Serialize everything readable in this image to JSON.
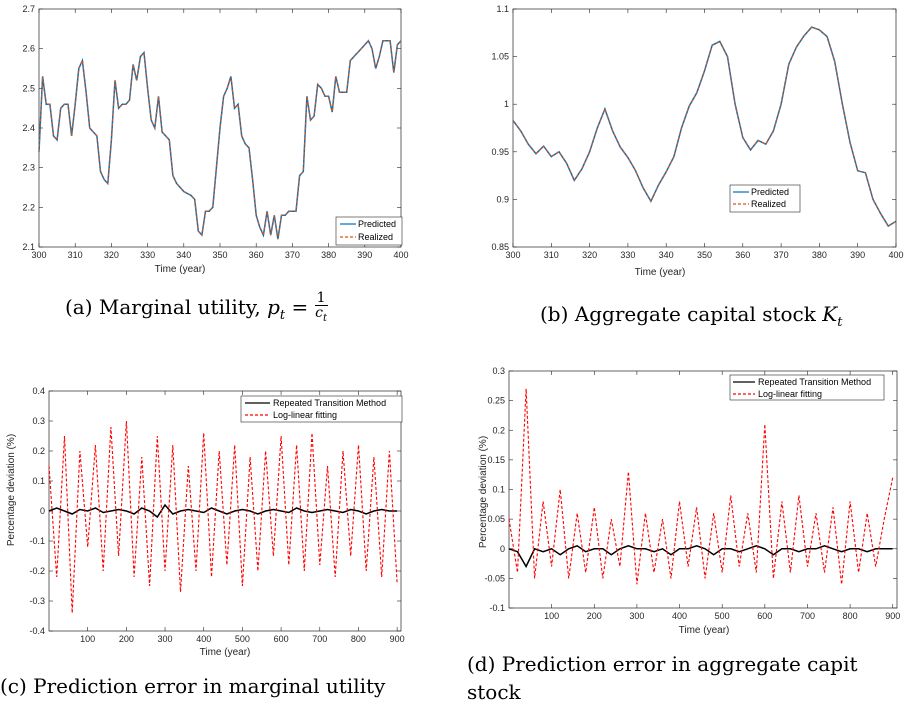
{
  "captions": {
    "a": "(a) Marginal utility, ",
    "a_math_p": "p",
    "a_math_sub": "t",
    "a_math_num": "1",
    "a_math_den": "c",
    "a_math_den_sub": "t",
    "b": "(b) Aggregate capital stock ",
    "b_math": "K",
    "b_math_sub": "t",
    "c": "(c) Prediction error in marginal utility",
    "d1": "(d) Prediction error in aggregate capit",
    "d2": "stock"
  },
  "chart_data": [
    {
      "id": "a",
      "type": "line",
      "xlabel": "Time (year)",
      "ylabel": "",
      "xlim": [
        300,
        400
      ],
      "ylim": [
        2.1,
        2.7
      ],
      "xticks": [
        300,
        310,
        320,
        330,
        340,
        350,
        360,
        370,
        380,
        390,
        400
      ],
      "yticks": [
        2.1,
        2.2,
        2.3,
        2.4,
        2.5,
        2.6,
        2.7
      ],
      "legend_position": "bottom-right",
      "x": [
        300,
        301,
        302,
        303,
        304,
        305,
        306,
        307,
        308,
        309,
        310,
        311,
        312,
        313,
        314,
        315,
        316,
        317,
        318,
        319,
        320,
        321,
        322,
        323,
        324,
        325,
        326,
        327,
        328,
        329,
        330,
        331,
        332,
        333,
        334,
        335,
        336,
        337,
        338,
        339,
        340,
        341,
        342,
        343,
        344,
        345,
        346,
        347,
        348,
        349,
        350,
        351,
        352,
        353,
        354,
        355,
        356,
        357,
        358,
        359,
        360,
        361,
        362,
        363,
        364,
        365,
        366,
        367,
        368,
        369,
        370,
        371,
        372,
        373,
        374,
        375,
        376,
        377,
        378,
        379,
        380,
        381,
        382,
        383,
        384,
        385,
        386,
        387,
        388,
        389,
        390,
        391,
        392,
        393,
        394,
        395,
        396,
        397,
        398,
        399,
        400
      ],
      "series": [
        {
          "name": "Predicted",
          "color": "#0072BD",
          "dash": "solid",
          "values": [
            2.34,
            2.53,
            2.46,
            2.46,
            2.38,
            2.37,
            2.45,
            2.46,
            2.46,
            2.38,
            2.46,
            2.55,
            2.57,
            2.49,
            2.4,
            2.39,
            2.38,
            2.29,
            2.27,
            2.26,
            2.37,
            2.52,
            2.45,
            2.46,
            2.46,
            2.47,
            2.56,
            2.52,
            2.58,
            2.59,
            2.5,
            2.42,
            2.4,
            2.48,
            2.39,
            2.38,
            2.37,
            2.28,
            2.26,
            2.25,
            2.24,
            2.235,
            2.23,
            2.22,
            2.14,
            2.13,
            2.19,
            2.19,
            2.2,
            2.3,
            2.4,
            2.48,
            2.5,
            2.53,
            2.45,
            2.46,
            2.38,
            2.36,
            2.35,
            2.27,
            2.18,
            2.15,
            2.13,
            2.19,
            2.13,
            2.18,
            2.12,
            2.18,
            2.18,
            2.19,
            2.19,
            2.19,
            2.28,
            2.29,
            2.48,
            2.42,
            2.43,
            2.51,
            2.5,
            2.48,
            2.48,
            2.44,
            2.53,
            2.49,
            2.49,
            2.49,
            2.57,
            2.58,
            2.59,
            2.6,
            2.61,
            2.62,
            2.6,
            2.55,
            2.58,
            2.62,
            2.62,
            2.62,
            2.54,
            2.61,
            2.62
          ]
        },
        {
          "name": "Realized",
          "color": "#D95319",
          "dash": "dashed",
          "values": [
            2.34,
            2.53,
            2.46,
            2.46,
            2.38,
            2.37,
            2.45,
            2.46,
            2.46,
            2.38,
            2.46,
            2.55,
            2.57,
            2.49,
            2.4,
            2.39,
            2.38,
            2.29,
            2.27,
            2.26,
            2.37,
            2.52,
            2.45,
            2.46,
            2.46,
            2.47,
            2.56,
            2.52,
            2.58,
            2.59,
            2.5,
            2.42,
            2.4,
            2.48,
            2.39,
            2.38,
            2.37,
            2.28,
            2.26,
            2.25,
            2.24,
            2.235,
            2.23,
            2.22,
            2.14,
            2.13,
            2.19,
            2.19,
            2.2,
            2.3,
            2.4,
            2.48,
            2.5,
            2.53,
            2.45,
            2.46,
            2.38,
            2.36,
            2.35,
            2.27,
            2.18,
            2.15,
            2.13,
            2.19,
            2.13,
            2.18,
            2.12,
            2.18,
            2.18,
            2.19,
            2.19,
            2.19,
            2.28,
            2.29,
            2.48,
            2.42,
            2.43,
            2.51,
            2.5,
            2.48,
            2.48,
            2.44,
            2.53,
            2.49,
            2.49,
            2.49,
            2.57,
            2.58,
            2.59,
            2.6,
            2.61,
            2.62,
            2.6,
            2.55,
            2.58,
            2.62,
            2.62,
            2.62,
            2.54,
            2.61,
            2.62
          ]
        }
      ]
    },
    {
      "id": "b",
      "type": "line",
      "xlabel": "Time (year)",
      "ylabel": "",
      "xlim": [
        300,
        400
      ],
      "ylim": [
        0.85,
        1.1
      ],
      "xticks": [
        300,
        310,
        320,
        330,
        340,
        350,
        360,
        370,
        380,
        390,
        400
      ],
      "yticks": [
        0.85,
        0.9,
        0.95,
        1,
        1.05,
        1.1
      ],
      "legend_position": "bottom-right",
      "x": [
        300,
        302,
        304,
        306,
        308,
        310,
        312,
        314,
        316,
        318,
        320,
        322,
        324,
        326,
        328,
        330,
        332,
        334,
        336,
        338,
        340,
        342,
        344,
        346,
        348,
        350,
        352,
        354,
        356,
        358,
        360,
        362,
        364,
        366,
        368,
        370,
        372,
        374,
        376,
        378,
        380,
        382,
        384,
        386,
        388,
        390,
        392,
        394,
        396,
        398,
        400
      ],
      "series": [
        {
          "name": "Predicted",
          "color": "#0072BD",
          "dash": "solid",
          "values": [
            0.983,
            0.972,
            0.958,
            0.948,
            0.956,
            0.945,
            0.95,
            0.938,
            0.92,
            0.932,
            0.95,
            0.975,
            0.995,
            0.972,
            0.955,
            0.944,
            0.93,
            0.912,
            0.898,
            0.915,
            0.929,
            0.945,
            0.975,
            0.998,
            1.012,
            1.035,
            1.062,
            1.066,
            1.05,
            1.0,
            0.965,
            0.952,
            0.962,
            0.958,
            0.972,
            1.0,
            1.042,
            1.06,
            1.072,
            1.081,
            1.078,
            1.071,
            1.045,
            1.0,
            0.96,
            0.93,
            0.928,
            0.9,
            0.885,
            0.872,
            0.877
          ]
        },
        {
          "name": "Realized",
          "color": "#D95319",
          "dash": "dashed",
          "values": [
            0.983,
            0.972,
            0.958,
            0.948,
            0.956,
            0.945,
            0.95,
            0.938,
            0.92,
            0.932,
            0.95,
            0.975,
            0.995,
            0.972,
            0.955,
            0.944,
            0.93,
            0.912,
            0.898,
            0.915,
            0.929,
            0.945,
            0.975,
            0.998,
            1.012,
            1.035,
            1.062,
            1.066,
            1.05,
            1.0,
            0.965,
            0.952,
            0.962,
            0.958,
            0.972,
            1.0,
            1.042,
            1.06,
            1.072,
            1.081,
            1.078,
            1.071,
            1.045,
            1.0,
            0.96,
            0.93,
            0.928,
            0.9,
            0.885,
            0.872,
            0.877
          ]
        }
      ]
    },
    {
      "id": "c",
      "type": "line",
      "xlabel": "Time (year)",
      "ylabel": "Percentage deviation (%)",
      "xlim": [
        0,
        910
      ],
      "ylim": [
        -0.4,
        0.4
      ],
      "xticks": [
        100,
        200,
        300,
        400,
        500,
        600,
        700,
        800,
        900
      ],
      "yticks": [
        -0.4,
        -0.3,
        -0.2,
        -0.1,
        0,
        0.1,
        0.2,
        0.3,
        0.4
      ],
      "legend_position": "top-right",
      "x": [
        0,
        20,
        40,
        60,
        80,
        100,
        120,
        140,
        160,
        180,
        200,
        220,
        240,
        260,
        280,
        300,
        320,
        340,
        360,
        380,
        400,
        420,
        440,
        460,
        480,
        500,
        520,
        540,
        560,
        580,
        600,
        620,
        640,
        660,
        680,
        700,
        720,
        740,
        760,
        780,
        800,
        820,
        840,
        860,
        880,
        900
      ],
      "series": [
        {
          "name": "Repeated Transition Method",
          "color": "#000000",
          "dash": "solid",
          "values": [
            0.0,
            0.01,
            0.0,
            -0.01,
            0.005,
            0.0,
            0.01,
            -0.005,
            0.0,
            0.005,
            0.0,
            -0.01,
            0.01,
            0.0,
            -0.02,
            0.02,
            -0.01,
            0.0,
            0.005,
            0.0,
            -0.005,
            0.01,
            0.0,
            -0.01,
            0.0,
            0.005,
            0.0,
            -0.01,
            0.0,
            0.005,
            0.0,
            -0.005,
            0.01,
            0.0,
            -0.005,
            0.0,
            0.005,
            0.0,
            -0.005,
            0.005,
            0.0,
            -0.01,
            0.0,
            0.005,
            0.0,
            0.0
          ]
        },
        {
          "name": "Log-linear fitting",
          "color": "#FF0000",
          "dash": "dashed",
          "values": [
            0.15,
            -0.22,
            0.25,
            -0.34,
            0.2,
            -0.12,
            0.22,
            -0.2,
            0.28,
            -0.15,
            0.3,
            -0.22,
            0.18,
            -0.25,
            0.25,
            -0.2,
            0.22,
            -0.27,
            0.15,
            -0.2,
            0.26,
            -0.22,
            0.2,
            -0.18,
            0.22,
            -0.25,
            0.18,
            -0.2,
            0.2,
            -0.15,
            0.25,
            -0.18,
            0.22,
            -0.2,
            0.26,
            -0.18,
            0.15,
            -0.22,
            0.2,
            -0.15,
            0.22,
            -0.2,
            0.18,
            -0.22,
            0.2,
            -0.24
          ]
        }
      ]
    },
    {
      "id": "d",
      "type": "line",
      "xlabel": "Time (year)",
      "ylabel": "Percentage deviation (%)",
      "xlim": [
        0,
        910
      ],
      "ylim": [
        -0.1,
        0.3
      ],
      "xticks": [
        100,
        200,
        300,
        400,
        500,
        600,
        700,
        800,
        900
      ],
      "yticks": [
        -0.1,
        -0.05,
        0,
        0.05,
        0.1,
        0.15,
        0.2,
        0.25,
        0.3
      ],
      "legend_position": "top-right",
      "x": [
        0,
        20,
        40,
        60,
        80,
        100,
        120,
        140,
        160,
        180,
        200,
        220,
        240,
        260,
        280,
        300,
        320,
        340,
        360,
        380,
        400,
        420,
        440,
        460,
        480,
        500,
        520,
        540,
        560,
        580,
        600,
        620,
        640,
        660,
        680,
        700,
        720,
        740,
        760,
        780,
        800,
        820,
        840,
        860,
        880,
        900
      ],
      "series": [
        {
          "name": "Repeated Transition Method",
          "color": "#000000",
          "dash": "solid",
          "values": [
            0.0,
            -0.005,
            -0.03,
            0.0,
            -0.005,
            0.0,
            -0.01,
            0.0,
            0.005,
            -0.005,
            0.0,
            0.0,
            -0.01,
            0.0,
            0.005,
            0.0,
            0.0,
            -0.005,
            0.0,
            -0.01,
            0.0,
            0.0,
            0.005,
            0.0,
            -0.01,
            0.0,
            0.0,
            -0.005,
            0.0,
            0.005,
            0.0,
            -0.01,
            0.0,
            0.0,
            -0.005,
            0.0,
            0.0,
            0.005,
            0.0,
            -0.005,
            0.0,
            0.0,
            -0.005,
            0.0,
            0.0,
            0.0
          ]
        },
        {
          "name": "Log-linear fitting",
          "color": "#FF0000",
          "dash": "dashed",
          "values": [
            0.05,
            -0.04,
            0.27,
            -0.05,
            0.08,
            -0.03,
            0.1,
            -0.05,
            0.06,
            -0.04,
            0.07,
            -0.05,
            0.05,
            -0.03,
            0.13,
            -0.06,
            0.06,
            -0.04,
            0.05,
            -0.05,
            0.08,
            -0.03,
            0.07,
            -0.05,
            0.06,
            -0.04,
            0.09,
            -0.03,
            0.06,
            -0.04,
            0.21,
            -0.05,
            0.08,
            -0.04,
            0.09,
            -0.03,
            0.06,
            -0.04,
            0.07,
            -0.06,
            0.08,
            -0.04,
            0.06,
            -0.03,
            0.05,
            0.12
          ]
        }
      ]
    }
  ]
}
